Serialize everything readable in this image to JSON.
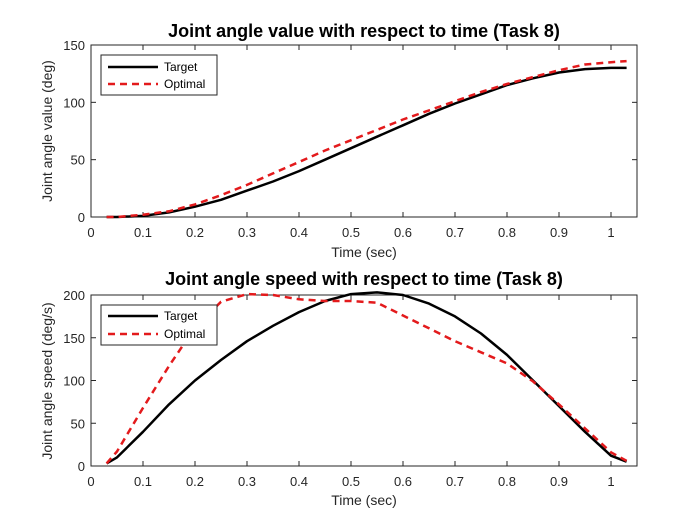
{
  "chart_data": [
    {
      "type": "line",
      "title": "Joint angle value with respect to time (Task 8)",
      "xlabel": "Time (sec)",
      "ylabel": "Joint angle value (deg)",
      "xlim": [
        0,
        1.05
      ],
      "ylim": [
        0,
        150
      ],
      "xticks": [
        "0",
        "0.1",
        "0.2",
        "0.3",
        "0.4",
        "0.5",
        "0.6",
        "0.7",
        "0.8",
        "0.9",
        "1"
      ],
      "yticks": [
        "0",
        "50",
        "100",
        "150"
      ],
      "legend_position": "top-left",
      "series": [
        {
          "name": "Target",
          "color": "#000000",
          "style": "solid",
          "x": [
            0.03,
            0.05,
            0.1,
            0.15,
            0.2,
            0.25,
            0.3,
            0.35,
            0.4,
            0.45,
            0.5,
            0.55,
            0.6,
            0.65,
            0.7,
            0.75,
            0.8,
            0.85,
            0.9,
            0.95,
            1.0,
            1.03
          ],
          "y": [
            0,
            0,
            1,
            4,
            9,
            15,
            23,
            31,
            40,
            50,
            60,
            70,
            80,
            90,
            99,
            107,
            115,
            121,
            126,
            129,
            130,
            130
          ]
        },
        {
          "name": "Optimal",
          "color": "#e31a1c",
          "style": "dashed",
          "x": [
            0.03,
            0.05,
            0.1,
            0.15,
            0.2,
            0.25,
            0.3,
            0.35,
            0.4,
            0.45,
            0.5,
            0.55,
            0.6,
            0.65,
            0.7,
            0.75,
            0.8,
            0.85,
            0.9,
            0.95,
            1.0,
            1.03
          ],
          "y": [
            0,
            0,
            2,
            5,
            11,
            19,
            28,
            38,
            48,
            58,
            67,
            76,
            85,
            93,
            101,
            109,
            116,
            122,
            128,
            133,
            135,
            136
          ]
        }
      ]
    },
    {
      "type": "line",
      "title": "Joint angle speed with respect to time (Task 8)",
      "xlabel": "Time (sec)",
      "ylabel": "Joint angle speed (deg/s)",
      "xlim": [
        0,
        1.05
      ],
      "ylim": [
        0,
        200
      ],
      "xticks": [
        "0",
        "0.1",
        "0.2",
        "0.3",
        "0.4",
        "0.5",
        "0.6",
        "0.7",
        "0.8",
        "0.9",
        "1"
      ],
      "yticks": [
        "0",
        "50",
        "100",
        "150",
        "200"
      ],
      "legend_position": "top-left",
      "series": [
        {
          "name": "Target",
          "color": "#000000",
          "style": "solid",
          "x": [
            0.03,
            0.05,
            0.1,
            0.15,
            0.2,
            0.25,
            0.3,
            0.35,
            0.4,
            0.45,
            0.5,
            0.55,
            0.6,
            0.65,
            0.7,
            0.75,
            0.8,
            0.85,
            0.9,
            0.95,
            1.0,
            1.03
          ],
          "y": [
            3,
            10,
            40,
            72,
            100,
            124,
            146,
            164,
            180,
            193,
            201,
            203,
            200,
            190,
            175,
            155,
            130,
            100,
            70,
            40,
            12,
            5
          ]
        },
        {
          "name": "Optimal",
          "color": "#e31a1c",
          "style": "dashed",
          "x": [
            0.03,
            0.05,
            0.1,
            0.15,
            0.2,
            0.25,
            0.3,
            0.35,
            0.4,
            0.45,
            0.5,
            0.55,
            0.6,
            0.65,
            0.7,
            0.75,
            0.8,
            0.85,
            0.9,
            0.95,
            1.0,
            1.03
          ],
          "y": [
            3,
            17,
            68,
            117,
            162,
            192,
            201,
            200,
            195,
            193,
            193,
            191,
            176,
            161,
            146,
            133,
            120,
            99,
            72,
            44,
            16,
            6
          ]
        }
      ]
    }
  ]
}
